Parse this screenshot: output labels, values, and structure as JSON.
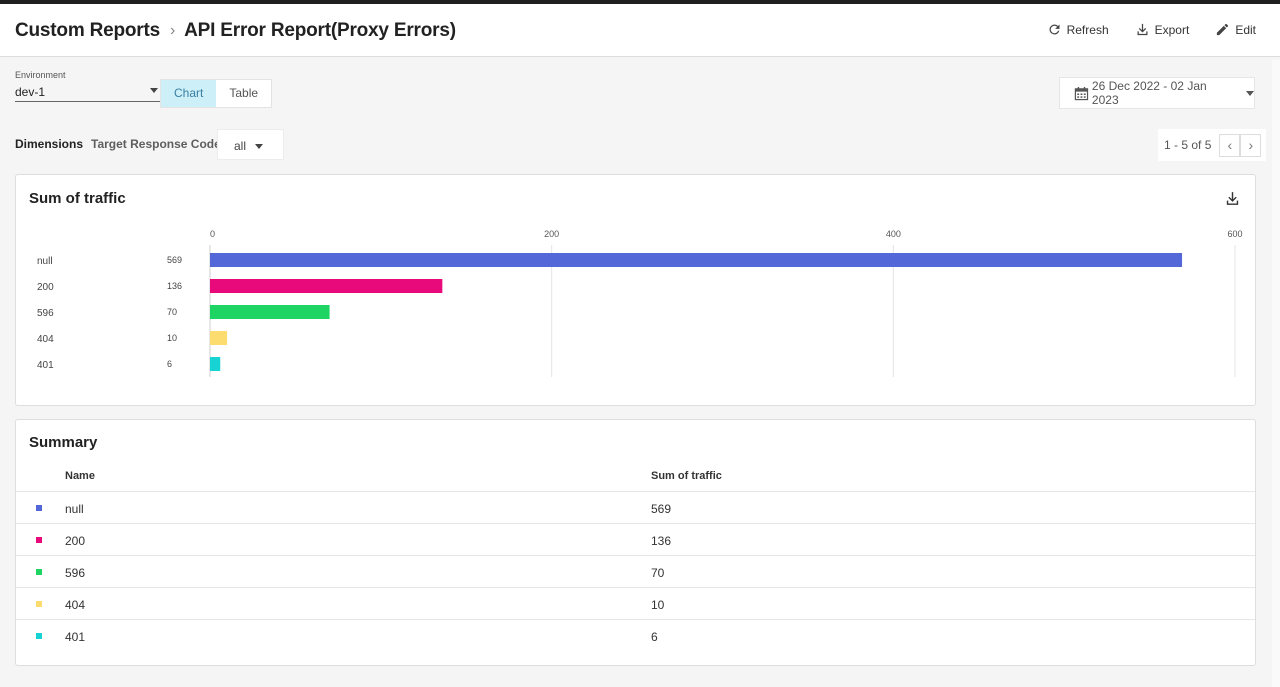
{
  "header": {
    "breadcrumb_parent": "Custom Reports",
    "breadcrumb_current": "API Error Report(Proxy Errors)",
    "actions": {
      "refresh": "Refresh",
      "export": "Export",
      "edit": "Edit"
    }
  },
  "controls": {
    "environment_label": "Environment",
    "environment_value": "dev-1",
    "view_toggle": {
      "chart": "Chart",
      "table": "Table",
      "selected": "Chart"
    },
    "date_range": "26 Dec 2022 - 02 Jan 2023",
    "dimensions_label": "Dimensions",
    "dimension_field": "Target Response Code",
    "dimension_value": "all",
    "pagination": "1 - 5 of 5"
  },
  "chart_card": {
    "title": "Sum of traffic"
  },
  "chart_data": {
    "type": "bar",
    "orientation": "horizontal",
    "categories": [
      "null",
      "200",
      "596",
      "404",
      "401"
    ],
    "values": [
      569,
      136,
      70,
      10,
      6
    ],
    "colors": [
      "#5467d8",
      "#e8097a",
      "#1ed463",
      "#fcdc6e",
      "#17d3d3"
    ],
    "xticks": [
      0,
      200,
      400,
      600
    ],
    "xlim": [
      0,
      600
    ],
    "grid": true
  },
  "summary": {
    "title": "Summary",
    "columns": [
      "Name",
      "Sum of traffic"
    ],
    "rows": [
      {
        "name": "null",
        "value": "569",
        "color": "#5467d8"
      },
      {
        "name": "200",
        "value": "136",
        "color": "#e8097a"
      },
      {
        "name": "596",
        "value": "70",
        "color": "#1ed463"
      },
      {
        "name": "404",
        "value": "10",
        "color": "#fcdc6e"
      },
      {
        "name": "401",
        "value": "6",
        "color": "#17d3d3"
      }
    ]
  }
}
